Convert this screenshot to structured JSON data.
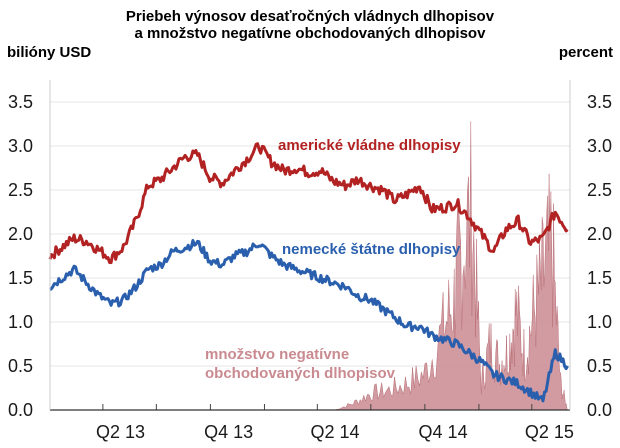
{
  "chart_data": {
    "type": "line",
    "title_line1": "Priebeh výnosov desaťročných vládnych dlhopisov",
    "title_line2": "a množstvo negatívne obchodovaných dlhopisov",
    "ylabel_left": "bilióny USD",
    "ylabel_right": "percent",
    "ylim": [
      0,
      3.75
    ],
    "yticks": [
      "0.0",
      "0.5",
      "1.0",
      "1.5",
      "2.0",
      "2.5",
      "3.0",
      "3.5"
    ],
    "x_tick_labels": [
      "Q2 13",
      "Q4 13",
      "Q2 14",
      "Q4 14",
      "Q2 15"
    ],
    "grid": true,
    "colors": {
      "us": "#b22222",
      "de": "#2a5fae",
      "negative": "#c98a90",
      "grid": "#e6e6e6"
    },
    "annotations": {
      "us": "americké vládne dlhopisy",
      "de": "nemecké štátne dlhopisy",
      "negative_line1": "množstvo negatívne",
      "negative_line2": "obchodovaných dlhopisov"
    },
    "series": [
      {
        "name": "americké vládne dlhopisy",
        "x": [
          "2013-01-01",
          "2013-01-21",
          "2013-02-11",
          "2013-03-04",
          "2013-03-25",
          "2013-04-15",
          "2013-05-06",
          "2013-05-27",
          "2013-06-17",
          "2013-07-08",
          "2013-07-29",
          "2013-08-19",
          "2013-09-09",
          "2013-09-30",
          "2013-10-21",
          "2013-11-11",
          "2013-12-02",
          "2013-12-23",
          "2014-01-13",
          "2014-02-03",
          "2014-02-24",
          "2014-03-17",
          "2014-04-07",
          "2014-04-28",
          "2014-05-19",
          "2014-06-09",
          "2014-06-30",
          "2014-07-21",
          "2014-08-11",
          "2014-09-01",
          "2014-09-22",
          "2014-10-13",
          "2014-11-03",
          "2014-11-24",
          "2014-12-15",
          "2015-01-05",
          "2015-01-26",
          "2015-02-16",
          "2015-03-09",
          "2015-03-30",
          "2015-04-20",
          "2015-05-11",
          "2015-06-01"
        ],
        "values": [
          1.75,
          1.85,
          1.95,
          1.92,
          1.82,
          1.72,
          1.85,
          2.15,
          2.55,
          2.62,
          2.75,
          2.88,
          2.9,
          2.65,
          2.58,
          2.72,
          2.85,
          3.0,
          2.82,
          2.72,
          2.75,
          2.7,
          2.72,
          2.6,
          2.55,
          2.62,
          2.55,
          2.5,
          2.38,
          2.45,
          2.55,
          2.28,
          2.3,
          2.35,
          2.2,
          2.0,
          1.8,
          2.05,
          2.15,
          1.9,
          1.95,
          2.25,
          2.05
        ]
      },
      {
        "name": "nemecké štátne dlhopisy",
        "x": [
          "2013-01-01",
          "2013-01-21",
          "2013-02-11",
          "2013-03-04",
          "2013-03-25",
          "2013-04-15",
          "2013-05-06",
          "2013-05-27",
          "2013-06-17",
          "2013-07-08",
          "2013-07-29",
          "2013-08-19",
          "2013-09-09",
          "2013-09-30",
          "2013-10-21",
          "2013-11-11",
          "2013-12-02",
          "2013-12-23",
          "2014-01-13",
          "2014-02-03",
          "2014-02-24",
          "2014-03-17",
          "2014-04-07",
          "2014-04-28",
          "2014-05-19",
          "2014-06-09",
          "2014-06-30",
          "2014-07-21",
          "2014-08-11",
          "2014-09-01",
          "2014-09-22",
          "2014-10-13",
          "2014-11-03",
          "2014-11-24",
          "2014-12-15",
          "2015-01-05",
          "2015-01-26",
          "2015-02-16",
          "2015-03-09",
          "2015-03-30",
          "2015-04-20",
          "2015-05-11",
          "2015-06-01"
        ],
        "values": [
          1.4,
          1.5,
          1.6,
          1.45,
          1.3,
          1.2,
          1.25,
          1.4,
          1.6,
          1.65,
          1.8,
          1.85,
          1.9,
          1.7,
          1.65,
          1.75,
          1.8,
          1.9,
          1.75,
          1.65,
          1.6,
          1.55,
          1.5,
          1.45,
          1.4,
          1.3,
          1.25,
          1.15,
          1.05,
          0.95,
          0.95,
          0.85,
          0.8,
          0.75,
          0.65,
          0.55,
          0.4,
          0.35,
          0.3,
          0.2,
          0.1,
          0.65,
          0.5
        ]
      },
      {
        "name": "množstvo negatívne obchodovaných dlhopisov",
        "type": "area",
        "x": [
          "2014-05-01",
          "2014-06-01",
          "2014-07-01",
          "2014-08-01",
          "2014-09-01",
          "2014-10-01",
          "2014-11-01",
          "2014-11-20",
          "2014-12-01",
          "2014-12-20",
          "2015-01-05",
          "2015-01-20",
          "2015-02-05",
          "2015-02-20",
          "2015-03-05",
          "2015-03-20",
          "2015-04-05",
          "2015-04-20",
          "2015-05-05",
          "2015-05-20",
          "2015-06-01"
        ],
        "values": [
          0,
          0.1,
          0.25,
          0.3,
          0.4,
          0.55,
          1.2,
          1.7,
          2.4,
          3.0,
          0.4,
          1.0,
          0.7,
          0.9,
          1.5,
          0.8,
          1.5,
          2.0,
          2.5,
          0.4,
          0
        ]
      }
    ]
  }
}
